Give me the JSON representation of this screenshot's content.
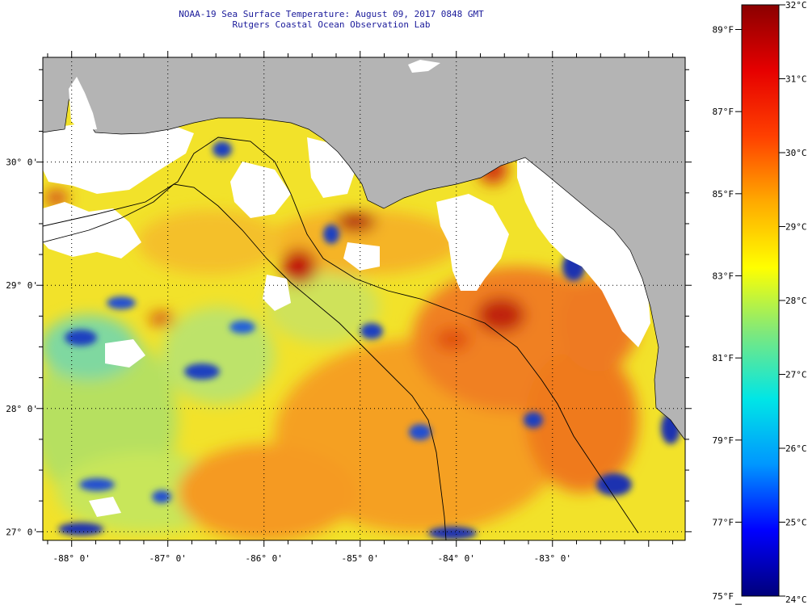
{
  "header": {
    "title": "NOAA-19 Sea Surface Temperature:  August 09, 2017 0848 GMT",
    "subtitle": "Rutgers Coastal Ocean Observation Lab"
  },
  "map": {
    "lat_labels": [
      "30° 0'",
      "29° 0'",
      "28° 0'",
      "27° 0'"
    ],
    "lat_values": [
      30,
      29,
      28,
      27
    ],
    "lon_labels": [
      "-88° 0'",
      "-87° 0'",
      "-86° 0'",
      "-85° 0'",
      "-84° 0'",
      "-83° 0'"
    ],
    "lon_values": [
      -88,
      -87,
      -86,
      -85,
      -84,
      -83
    ],
    "lat_range": [
      26.93,
      30.85
    ],
    "lon_range": [
      -88.3,
      -81.62
    ],
    "land_color": "#b4b4b4",
    "cloud_color": "#ffffff"
  },
  "colorbar": {
    "c_labels": [
      "32°C",
      "31°C",
      "30°C",
      "29°C",
      "28°C",
      "27°C",
      "26°C",
      "25°C",
      "24°C"
    ],
    "c_values": [
      32,
      31,
      30,
      29,
      28,
      27,
      26,
      25,
      24
    ],
    "f_labels": [
      "89°F",
      "87°F",
      "85°F",
      "83°F",
      "81°F",
      "79°F",
      "77°F",
      "75°F"
    ],
    "f_values": [
      89,
      87,
      85,
      83,
      81,
      79,
      77,
      75
    ],
    "range_c": [
      24,
      32
    ],
    "stops": [
      "#00007a",
      "#0000ff",
      "#0096ff",
      "#00e6e6",
      "#7de87d",
      "#ffff00",
      "#ffaa00",
      "#ff4000",
      "#e60000",
      "#8b0000"
    ]
  }
}
